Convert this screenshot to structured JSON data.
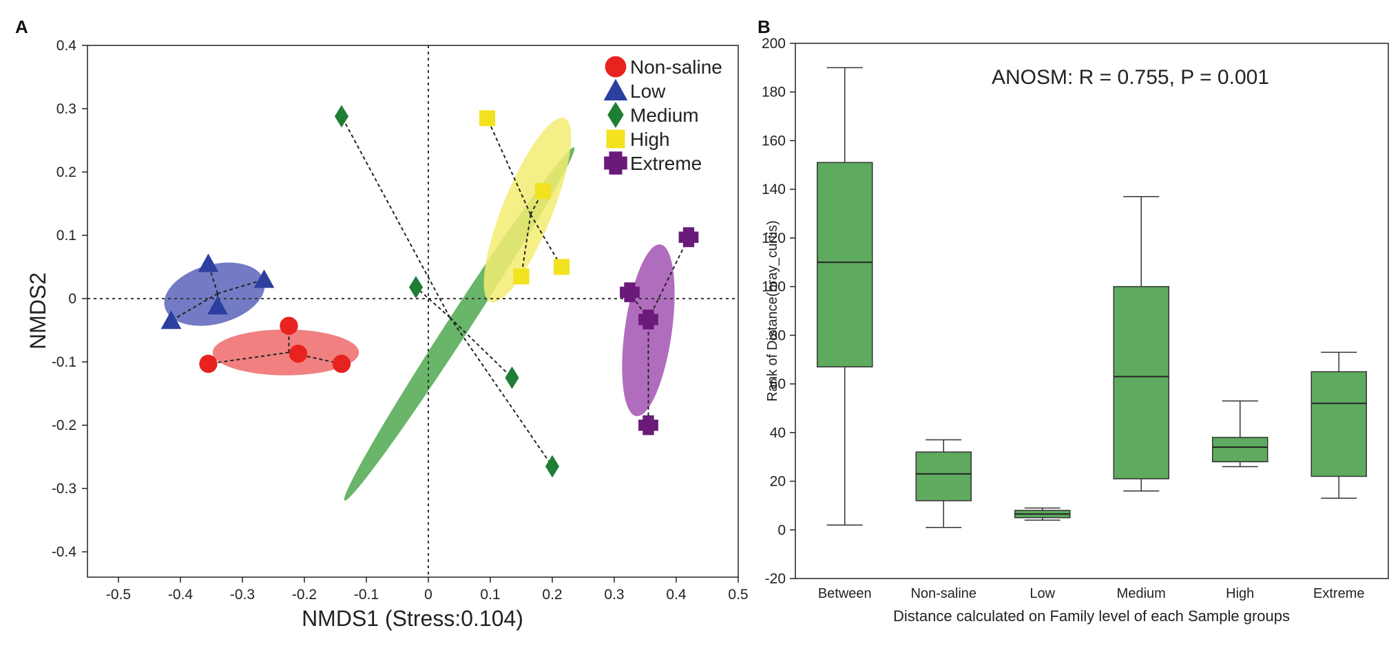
{
  "figure": {
    "panel_a_letter": "A",
    "panel_b_letter": "B"
  },
  "chart_data": [
    {
      "type": "scatter",
      "panel": "A",
      "xlabel": "NMDS1 (Stress:0.104)",
      "ylabel": "NMDS2",
      "xlim": [
        -0.55,
        0.5
      ],
      "ylim": [
        -0.44,
        0.4
      ],
      "xticks": [
        "-0.5",
        "-0.4",
        "-0.3",
        "-0.2",
        "-0.1",
        "0",
        "0.1",
        "0.2",
        "0.3",
        "0.4",
        "0.5"
      ],
      "yticks": [
        "0.4",
        "0.3",
        "0.2",
        "0.1",
        "0",
        "-0.1",
        "-0.2",
        "-0.3",
        "-0.4"
      ],
      "series": [
        {
          "name": "Non-saline",
          "marker": "circle",
          "color": "#e8231f",
          "ellipse_color": "#ee6b6b",
          "centroid": [
            -0.225,
            -0.085
          ],
          "points": [
            [
              -0.355,
              -0.103
            ],
            [
              -0.225,
              -0.043
            ],
            [
              -0.21,
              -0.087
            ],
            [
              -0.14,
              -0.103
            ]
          ],
          "ellipse": {
            "center": [
              -0.23,
              -0.085
            ],
            "rx": 0.118,
            "ry": 0.037,
            "angle": 0
          }
        },
        {
          "name": "Low",
          "marker": "triangle",
          "color": "#2c3e9e",
          "ellipse_color": "#5a64bb",
          "centroid": [
            -0.34,
            0.008
          ],
          "points": [
            [
              -0.415,
              -0.035
            ],
            [
              -0.355,
              0.055
            ],
            [
              -0.34,
              -0.012
            ],
            [
              -0.265,
              0.03
            ]
          ],
          "ellipse": {
            "center": [
              -0.345,
              0.007
            ],
            "rx": 0.083,
            "ry": 0.048,
            "angle": -15
          }
        },
        {
          "name": "Medium",
          "marker": "diamond",
          "color": "#1e7e34",
          "ellipse_color": "#4fa84f",
          "centroid": [
            0.035,
            -0.03
          ],
          "points": [
            [
              -0.14,
              0.288
            ],
            [
              -0.02,
              0.018
            ],
            [
              0.135,
              -0.125
            ],
            [
              0.2,
              -0.265
            ]
          ],
          "ellipse": {
            "center": [
              0.05,
              -0.04
            ],
            "rx": 0.34,
            "ry": 0.018,
            "angle": -57
          }
        },
        {
          "name": "High",
          "marker": "square",
          "color": "#f2e21f",
          "ellipse_color": "#f3ec72",
          "centroid": [
            0.165,
            0.133
          ],
          "points": [
            [
              0.095,
              0.285
            ],
            [
              0.185,
              0.17
            ],
            [
              0.15,
              0.035
            ],
            [
              0.215,
              0.05
            ]
          ],
          "ellipse": {
            "center": [
              0.16,
              0.14
            ],
            "rx": 0.16,
            "ry": 0.04,
            "angle": -68
          }
        },
        {
          "name": "Extreme",
          "marker": "plus",
          "color": "#6a1b7a",
          "ellipse_color": "#a253b2",
          "centroid": [
            0.355,
            -0.033
          ],
          "points": [
            [
              0.325,
              0.01
            ],
            [
              0.42,
              0.097
            ],
            [
              0.355,
              -0.033
            ],
            [
              0.355,
              -0.2
            ]
          ],
          "ellipse": {
            "center": [
              0.355,
              -0.05
            ],
            "rx": 0.14,
            "ry": 0.038,
            "angle": -82
          }
        }
      ],
      "legend": {
        "position": "top-right",
        "items": [
          "Non-saline",
          "Low",
          "Medium",
          "High",
          "Extreme"
        ]
      }
    },
    {
      "type": "box",
      "panel": "B",
      "title": "ANOSM:  R = 0.755,  P = 0.001",
      "xlabel": "Distance calculated on Family level of each Sample groups",
      "ylabel": "Rank of Distance(bray_curtis)",
      "ylim": [
        -20,
        200
      ],
      "yticks": [
        200,
        180,
        160,
        140,
        120,
        100,
        80,
        60,
        40,
        20,
        0,
        -20
      ],
      "categories": [
        "Between",
        "Non-saline",
        "Low",
        "Medium",
        "High",
        "Extreme"
      ],
      "fill_color": "#5eaa5e",
      "boxes": [
        {
          "category": "Between",
          "min": 2,
          "q1": 67,
          "median": 110,
          "q3": 151,
          "max": 190
        },
        {
          "category": "Non-saline",
          "min": 1,
          "q1": 12,
          "median": 23,
          "q3": 32,
          "max": 37
        },
        {
          "category": "Low",
          "min": 4,
          "q1": 5,
          "median": 6.5,
          "q3": 8,
          "max": 9
        },
        {
          "category": "Medium",
          "min": 16,
          "q1": 21,
          "median": 63,
          "q3": 100,
          "max": 137
        },
        {
          "category": "High",
          "min": 26,
          "q1": 28,
          "median": 34,
          "q3": 38,
          "max": 53
        },
        {
          "category": "Extreme",
          "min": 13,
          "q1": 22,
          "median": 52,
          "q3": 65,
          "max": 73
        }
      ]
    }
  ]
}
